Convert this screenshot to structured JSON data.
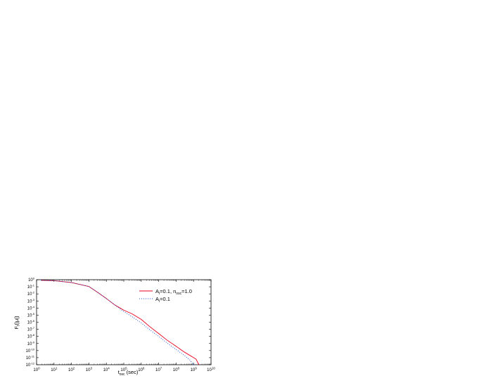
{
  "chart_data": {
    "type": "line",
    "title": "",
    "xlabel": "t",
    "xlabel_sub": "osc",
    "xlabel_suffix": " (sec)",
    "ylabel": "F",
    "ylabel_sub": "f",
    "ylabel_suffix": "(|μ|)",
    "xscale": "log",
    "yscale": "log",
    "xlim": [
      1,
      10000000000
    ],
    "ylim": [
      1e-12,
      1
    ],
    "x_ticks": [
      1,
      10,
      100,
      1000,
      10000,
      100000,
      1000000,
      10000000,
      100000000,
      1000000000,
      10000000000
    ],
    "x_tick_exponents": [
      "0",
      "1",
      "2",
      "3",
      "4",
      "5",
      "6",
      "7",
      "8",
      "9",
      "10"
    ],
    "y_ticks": [
      1e-12,
      1e-11,
      1e-10,
      1e-09,
      1e-08,
      1e-07,
      1e-06,
      1e-05,
      0.0001,
      0.001,
      0.01,
      0.1,
      1
    ],
    "y_tick_exponents": [
      "-12",
      "-11",
      "-10",
      "-9",
      "-8",
      "-7",
      "-6",
      "-5",
      "-4",
      "-3",
      "-2",
      "-1",
      "0"
    ],
    "grid": false,
    "legend_position": "top-right",
    "series": [
      {
        "name": "A_i=0.1, n_osc=1.0",
        "legend_parts": [
          "A",
          "i",
          "=0.1, n",
          "osc",
          "=1.0"
        ],
        "color": "#e8001c",
        "style": "solid",
        "points": [
          [
            1.8,
            0.82
          ],
          [
            10,
            0.72
          ],
          [
            100,
            0.4
          ],
          [
            1000,
            0.11
          ],
          [
            3000,
            0.018
          ],
          [
            10000,
            0.0022
          ],
          [
            30000,
            0.00028
          ],
          [
            100000,
            5e-05
          ],
          [
            300000,
            1.5e-05
          ],
          [
            1000000,
            2.5e-06
          ],
          [
            3000000,
            2.5e-07
          ],
          [
            10000000,
            2.5e-08
          ],
          [
            30000000,
            3e-09
          ],
          [
            100000000,
            4e-10
          ],
          [
            300000000,
            6e-11
          ],
          [
            1000000000,
            1e-11
          ],
          [
            1400000000,
            6e-12
          ],
          [
            2000000000,
            1e-12
          ]
        ]
      },
      {
        "name": "A_i=0.1",
        "legend_parts": [
          "A",
          "i",
          "=0.1"
        ],
        "color": "#2255dd",
        "style": "dotted",
        "points": [
          [
            1.8,
            0.82
          ],
          [
            10,
            0.72
          ],
          [
            100,
            0.4
          ],
          [
            1000,
            0.11
          ],
          [
            3000,
            0.018
          ],
          [
            10000,
            0.0022
          ],
          [
            30000,
            0.00028
          ],
          [
            100000,
            3.2e-05
          ],
          [
            300000,
            6e-06
          ],
          [
            1000000,
            8e-07
          ],
          [
            3000000,
            9e-08
          ],
          [
            10000000,
            1e-08
          ],
          [
            30000000,
            1.2e-09
          ],
          [
            100000000,
            1.4e-10
          ],
          [
            300000000,
            2e-11
          ],
          [
            600000000,
            5e-12
          ],
          [
            900000000,
            1.3e-12
          ],
          [
            1100000000,
            1e-12
          ]
        ]
      }
    ]
  }
}
